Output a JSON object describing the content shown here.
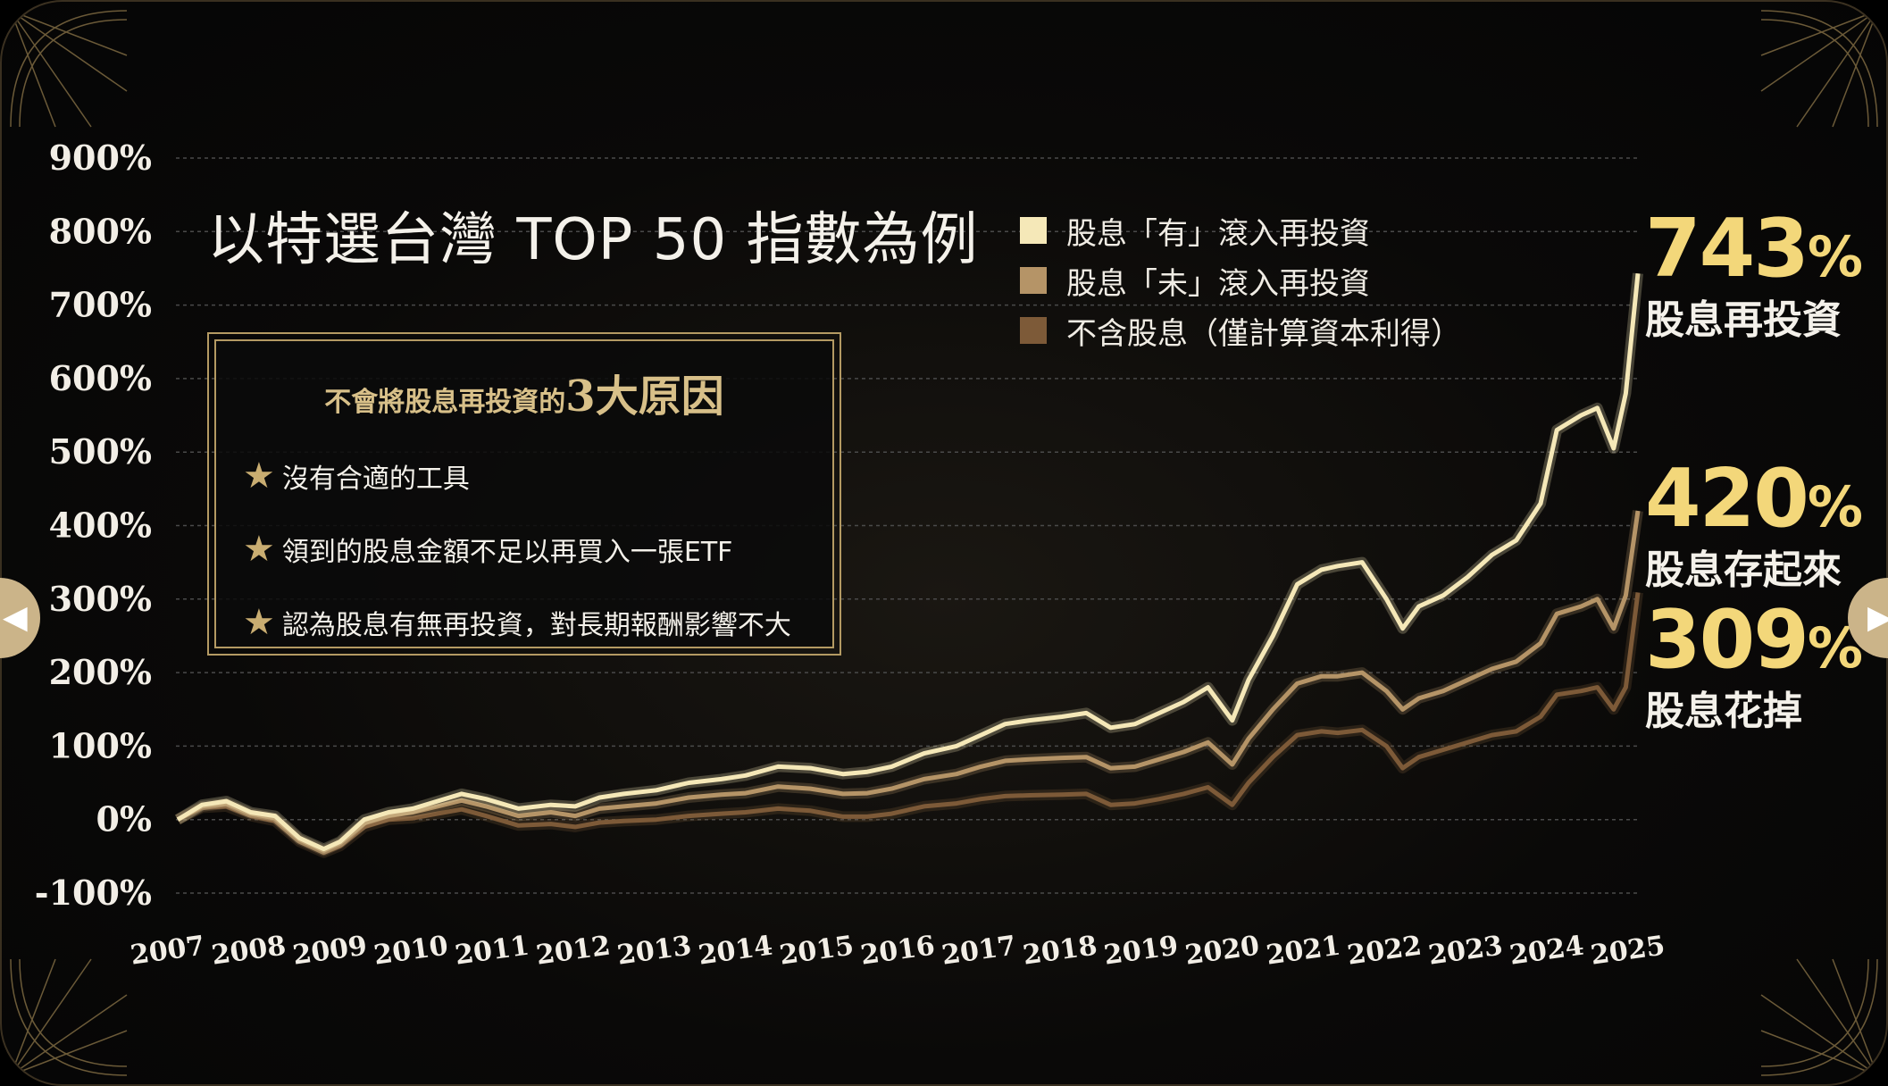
{
  "title": "以特選台灣 TOP 50 指數為例",
  "legend": [
    {
      "label": "股息「有」滾入再投資",
      "color": "#f5e8b8"
    },
    {
      "label": "股息「未」滾入再投資",
      "color": "#b59467"
    },
    {
      "label": "不含股息（僅計算資本利得）",
      "color": "#7d5a38"
    }
  ],
  "reasons_box": {
    "title_prefix": "不會將股息再投資的",
    "title_big": "3大原因",
    "items": [
      "沒有合適的工具",
      "領到的股息金額不足以再買入一張ETF",
      "認為股息有無再投資，對長期報酬影響不大"
    ]
  },
  "callouts": [
    {
      "value": "743",
      "sign": "%",
      "label": "股息再投資"
    },
    {
      "value": "420",
      "sign": "%",
      "label": "股息存起來"
    },
    {
      "value": "309",
      "sign": "%",
      "label": "股息花掉"
    }
  ],
  "nav": {
    "left_icon": "chevron-left-icon",
    "right_icon": "chevron-right-icon"
  },
  "chart_data": {
    "type": "line",
    "title": "以特選台灣 TOP 50 指數為例",
    "xlabel": "",
    "ylabel": "",
    "ylim": [
      -100,
      900
    ],
    "yticks": [
      "-100%",
      "0%",
      "100%",
      "200%",
      "300%",
      "400%",
      "500%",
      "600%",
      "700%",
      "800%",
      "900%"
    ],
    "xticks": [
      "2007",
      "2008",
      "2009",
      "2010",
      "2011",
      "2012",
      "2013",
      "2014",
      "2015",
      "2016",
      "2017",
      "2018",
      "2019",
      "2020",
      "2021",
      "2022",
      "2023",
      "2024",
      "2025"
    ],
    "grid": true,
    "legend_position": "top",
    "x": [
      2007.0,
      2007.3,
      2007.6,
      2007.9,
      2008.2,
      2008.5,
      2008.8,
      2009.0,
      2009.3,
      2009.6,
      2009.9,
      2010.2,
      2010.5,
      2010.8,
      2011.2,
      2011.6,
      2011.9,
      2012.2,
      2012.5,
      2012.9,
      2013.3,
      2013.7,
      2014.0,
      2014.4,
      2014.8,
      2015.2,
      2015.5,
      2015.8,
      2016.2,
      2016.6,
      2016.9,
      2017.2,
      2017.5,
      2017.9,
      2018.2,
      2018.5,
      2018.8,
      2019.1,
      2019.4,
      2019.7,
      2020.0,
      2020.2,
      2020.5,
      2020.8,
      2021.1,
      2021.3,
      2021.6,
      2021.9,
      2022.1,
      2022.3,
      2022.6,
      2022.9,
      2023.2,
      2023.5,
      2023.8,
      2024.0,
      2024.3,
      2024.5,
      2024.7,
      2024.85,
      2025.0
    ],
    "series": [
      {
        "name": "股息「有」滾入再投資",
        "color": "#f5e8b8",
        "values": [
          0,
          20,
          25,
          10,
          5,
          -25,
          -40,
          -30,
          0,
          10,
          15,
          25,
          35,
          28,
          15,
          20,
          18,
          30,
          35,
          40,
          50,
          55,
          60,
          72,
          70,
          62,
          65,
          72,
          90,
          100,
          115,
          130,
          135,
          140,
          145,
          125,
          130,
          145,
          160,
          180,
          135,
          190,
          250,
          320,
          340,
          345,
          350,
          300,
          260,
          290,
          305,
          330,
          360,
          380,
          430,
          530,
          550,
          560,
          505,
          580,
          743
        ]
      },
      {
        "name": "股息「未」滾入再投資",
        "color": "#b59467",
        "values": [
          0,
          18,
          22,
          8,
          2,
          -27,
          -42,
          -32,
          -5,
          5,
          10,
          18,
          26,
          18,
          5,
          10,
          5,
          15,
          18,
          22,
          30,
          34,
          36,
          45,
          42,
          35,
          36,
          42,
          55,
          62,
          72,
          80,
          82,
          84,
          85,
          70,
          72,
          82,
          92,
          105,
          75,
          110,
          150,
          185,
          195,
          195,
          200,
          175,
          150,
          165,
          175,
          190,
          205,
          215,
          240,
          280,
          290,
          300,
          260,
          305,
          420
        ]
      },
      {
        "name": "不含股息（僅計算資本利得）",
        "color": "#7d5a38",
        "values": [
          0,
          16,
          18,
          5,
          -2,
          -30,
          -45,
          -36,
          -10,
          0,
          2,
          8,
          14,
          5,
          -8,
          -6,
          -10,
          -4,
          -2,
          0,
          5,
          8,
          10,
          15,
          12,
          4,
          4,
          8,
          18,
          22,
          28,
          32,
          33,
          34,
          35,
          20,
          22,
          28,
          35,
          44,
          20,
          50,
          85,
          115,
          120,
          118,
          122,
          100,
          70,
          85,
          95,
          105,
          115,
          120,
          140,
          170,
          175,
          180,
          150,
          180,
          309
        ]
      }
    ]
  }
}
